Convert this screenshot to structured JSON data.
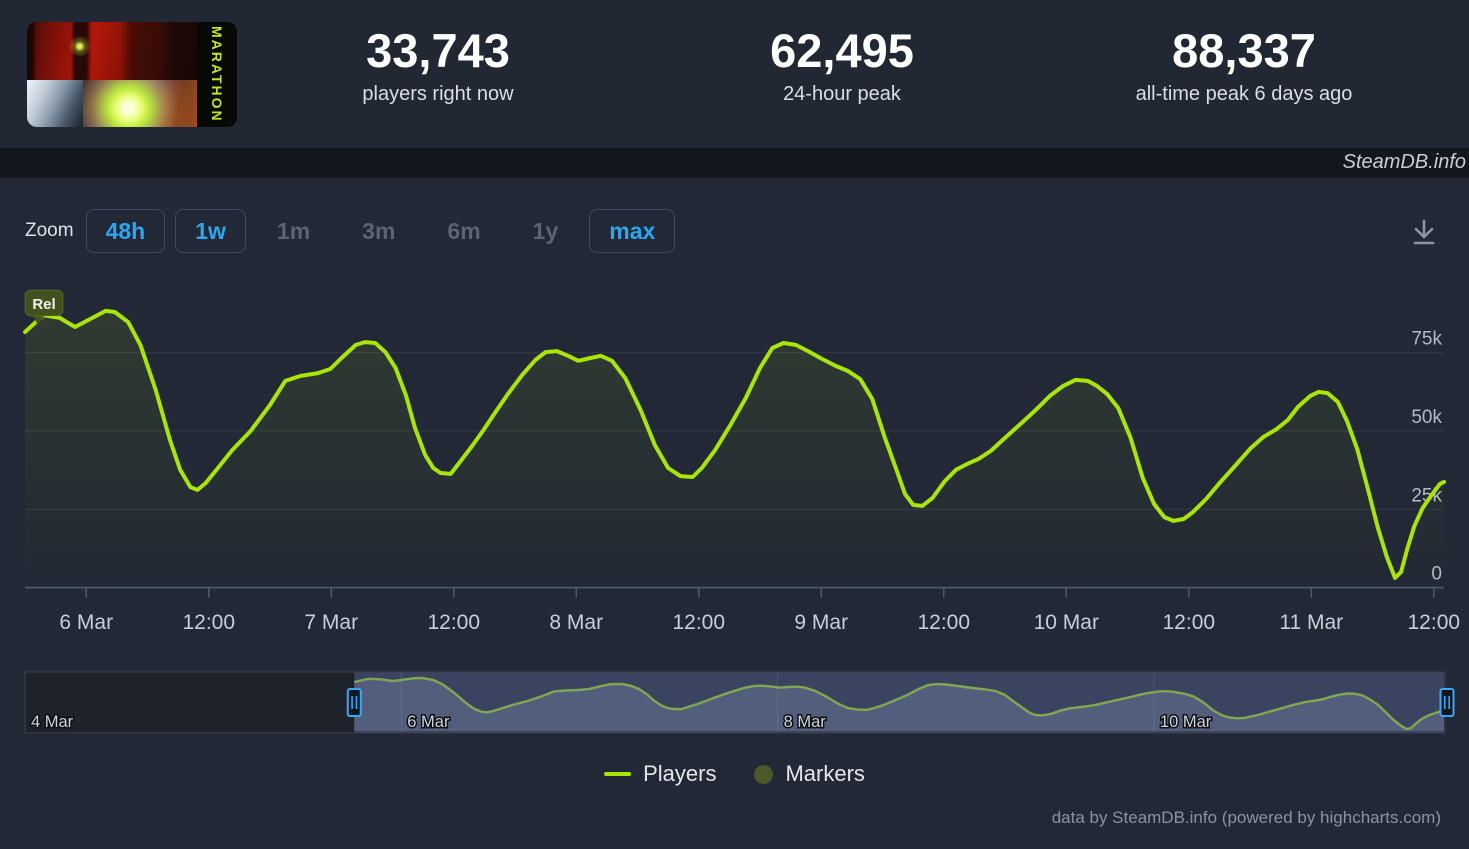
{
  "header": {
    "game_title": "MARATHON",
    "stats": [
      {
        "value": "33,743",
        "label": "players right now"
      },
      {
        "value": "62,495",
        "label": "24-hour peak"
      },
      {
        "value": "88,337",
        "label": "all-time peak 6 days ago"
      }
    ]
  },
  "watermark": "SteamDB.info",
  "toolbar": {
    "zoom_label": "Zoom",
    "buttons": [
      {
        "label": "48h",
        "style": "outlined",
        "enabled": true
      },
      {
        "label": "1w",
        "style": "outlined",
        "enabled": true
      },
      {
        "label": "1m",
        "style": "text",
        "enabled": false
      },
      {
        "label": "3m",
        "style": "text",
        "enabled": false
      },
      {
        "label": "6m",
        "style": "text",
        "enabled": false
      },
      {
        "label": "1y",
        "style": "text",
        "enabled": false
      },
      {
        "label": "max",
        "style": "outlined",
        "enabled": true
      }
    ]
  },
  "legend": [
    {
      "label": "Players",
      "swatch": "line",
      "color": "#a9e507"
    },
    {
      "label": "Markers",
      "swatch": "circle",
      "color": "#4c5a29"
    }
  ],
  "credits": "data by SteamDB.info (powered by highcharts.com)",
  "colors": {
    "accent_blue": "#2ea5f0",
    "line_green": "#a9e507",
    "grid": "#323a48",
    "axis": "#4f5a69",
    "x_label": "#c9cfd7",
    "y_label": "#b2bac3",
    "nav_mask": "rgba(100,116,172,0.42)",
    "rel_badge_bg": "#44511f"
  },
  "chart_data": {
    "type": "line",
    "title": "Concurrent players",
    "x_unit": "hours relative to 6 Mar 00:00",
    "x_range": [
      -6,
      133
    ],
    "y_range": [
      0,
      100000
    ],
    "grid": true,
    "legend_position": "bottom",
    "y_ticks": [
      {
        "v": 0,
        "label": "0"
      },
      {
        "v": 25000,
        "label": "25k"
      },
      {
        "v": 50000,
        "label": "50k"
      },
      {
        "v": 75000,
        "label": "75k"
      }
    ],
    "x_ticks": [
      {
        "t": 0,
        "label": "6 Mar"
      },
      {
        "t": 12,
        "label": "12:00"
      },
      {
        "t": 24,
        "label": "7 Mar"
      },
      {
        "t": 36,
        "label": "12:00"
      },
      {
        "t": 48,
        "label": "8 Mar"
      },
      {
        "t": 60,
        "label": "12:00"
      },
      {
        "t": 72,
        "label": "9 Mar"
      },
      {
        "t": 84,
        "label": "12:00"
      },
      {
        "t": 96,
        "label": "10 Mar"
      },
      {
        "t": 108,
        "label": "12:00"
      },
      {
        "t": 120,
        "label": "11 Mar"
      },
      {
        "t": 132,
        "label": "12:00"
      }
    ],
    "release_marker": {
      "label": "Rel",
      "t": -5
    },
    "series": [
      {
        "name": "Players",
        "color": "#a9e507",
        "points": [
          [
            -6,
            81600
          ],
          [
            -4.2,
            87000
          ],
          [
            -2.6,
            86100
          ],
          [
            -1.1,
            83200
          ],
          [
            0.6,
            86100
          ],
          [
            1.9,
            88337
          ],
          [
            2.8,
            88000
          ],
          [
            4.1,
            84800
          ],
          [
            5.3,
            77500
          ],
          [
            6.8,
            63100
          ],
          [
            8.2,
            47100
          ],
          [
            9.2,
            37600
          ],
          [
            10.2,
            32100
          ],
          [
            10.9,
            31200
          ],
          [
            11.7,
            33400
          ],
          [
            12.9,
            38200
          ],
          [
            14.3,
            43900
          ],
          [
            16.1,
            50000
          ],
          [
            18,
            58300
          ],
          [
            19.5,
            66000
          ],
          [
            21,
            67600
          ],
          [
            22.7,
            68500
          ],
          [
            23.9,
            69800
          ],
          [
            25.1,
            73600
          ],
          [
            26.4,
            77500
          ],
          [
            27.3,
            78400
          ],
          [
            28.3,
            78100
          ],
          [
            29.3,
            75200
          ],
          [
            30.3,
            70100
          ],
          [
            31.3,
            61500
          ],
          [
            32.2,
            51000
          ],
          [
            33.2,
            42300
          ],
          [
            34,
            38200
          ],
          [
            34.7,
            36600
          ],
          [
            35.7,
            36300
          ],
          [
            36.6,
            40100
          ],
          [
            37.8,
            45200
          ],
          [
            38.9,
            50300
          ],
          [
            40.1,
            56100
          ],
          [
            41.3,
            61800
          ],
          [
            42.7,
            67900
          ],
          [
            44,
            72700
          ],
          [
            45,
            75200
          ],
          [
            46.1,
            75500
          ],
          [
            47.2,
            74000
          ],
          [
            48.2,
            72400
          ],
          [
            49.4,
            73300
          ],
          [
            50.4,
            74000
          ],
          [
            51.5,
            72400
          ],
          [
            52.8,
            66900
          ],
          [
            54.3,
            56700
          ],
          [
            55.7,
            45500
          ],
          [
            57,
            38200
          ],
          [
            58.2,
            35600
          ],
          [
            59.4,
            35300
          ],
          [
            60.3,
            38200
          ],
          [
            61.6,
            43900
          ],
          [
            63.1,
            51900
          ],
          [
            64.6,
            60500
          ],
          [
            66,
            70100
          ],
          [
            67.2,
            76500
          ],
          [
            68.3,
            78100
          ],
          [
            69.5,
            77500
          ],
          [
            70.7,
            75500
          ],
          [
            71.9,
            73300
          ],
          [
            73.4,
            70800
          ],
          [
            74.6,
            69200
          ],
          [
            75.8,
            66600
          ],
          [
            77,
            60200
          ],
          [
            78.2,
            48100
          ],
          [
            79.3,
            38200
          ],
          [
            80.2,
            29900
          ],
          [
            81,
            26400
          ],
          [
            81.9,
            26100
          ],
          [
            82.9,
            28600
          ],
          [
            84.1,
            34000
          ],
          [
            85.2,
            37600
          ],
          [
            86.3,
            39500
          ],
          [
            87.4,
            41100
          ],
          [
            88.6,
            43600
          ],
          [
            90,
            47800
          ],
          [
            91.5,
            52200
          ],
          [
            93,
            56700
          ],
          [
            94.4,
            61200
          ],
          [
            95.7,
            64400
          ],
          [
            96.9,
            66300
          ],
          [
            98.1,
            66000
          ],
          [
            99,
            64400
          ],
          [
            100,
            61800
          ],
          [
            101.1,
            57300
          ],
          [
            102.3,
            47800
          ],
          [
            103.5,
            35000
          ],
          [
            104.6,
            26700
          ],
          [
            105.6,
            22500
          ],
          [
            106.5,
            21300
          ],
          [
            107.5,
            21900
          ],
          [
            108.4,
            24100
          ],
          [
            109.7,
            28300
          ],
          [
            111.1,
            33700
          ],
          [
            112.6,
            39100
          ],
          [
            114,
            44300
          ],
          [
            115.3,
            48100
          ],
          [
            116.6,
            50600
          ],
          [
            117.7,
            53500
          ],
          [
            118.7,
            57700
          ],
          [
            119.9,
            61200
          ],
          [
            120.7,
            62495
          ],
          [
            121.6,
            62100
          ],
          [
            122.6,
            59300
          ],
          [
            123.5,
            53200
          ],
          [
            124.5,
            44300
          ],
          [
            125.5,
            32100
          ],
          [
            126.5,
            19400
          ],
          [
            127.4,
            9800
          ],
          [
            128.2,
            3100
          ],
          [
            128.8,
            5000
          ],
          [
            129.4,
            12300
          ],
          [
            130.1,
            19700
          ],
          [
            130.9,
            25400
          ],
          [
            131.8,
            29600
          ],
          [
            132.6,
            33100
          ],
          [
            133,
            33743
          ]
        ]
      }
    ],
    "navigator": {
      "x_range_t": [
        -48,
        133
      ],
      "selected_from_t": -6,
      "selected_to_t": 133,
      "labels": [
        {
          "t": -48,
          "label": "4 Mar"
        },
        {
          "t": 0,
          "label": "6 Mar"
        },
        {
          "t": 48,
          "label": "8 Mar"
        },
        {
          "t": 96,
          "label": "10 Mar"
        }
      ]
    }
  }
}
